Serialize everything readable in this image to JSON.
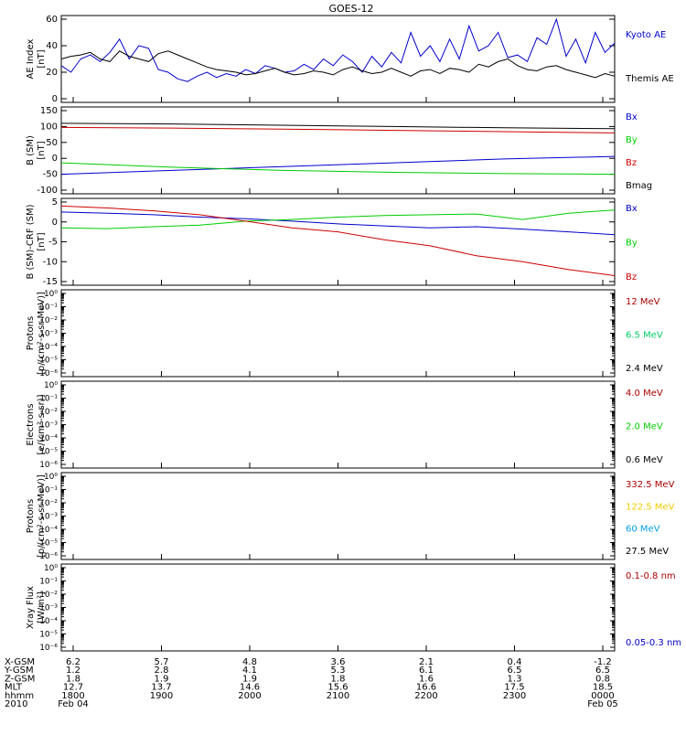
{
  "title": "GOES-12",
  "chart_data": [
    {
      "type": "line",
      "ylabel_lines": [
        "AE Index",
        "[nT]"
      ],
      "ylim": [
        0,
        60
      ],
      "yticks": [
        0,
        20,
        40,
        60
      ],
      "series": [
        {
          "name": "Kyoto AE",
          "color": "#0000cc",
          "values": [
            25,
            20,
            30,
            33,
            28,
            35,
            45,
            30,
            40,
            38,
            22,
            20,
            15,
            13,
            17,
            20,
            16,
            19,
            17,
            22,
            19,
            25,
            23,
            20,
            21,
            26,
            22,
            30,
            25,
            33,
            28,
            20,
            32,
            24,
            35,
            27,
            50,
            32,
            40,
            28,
            45,
            30,
            55,
            36,
            40,
            50,
            31,
            33,
            28,
            46,
            41,
            60,
            32,
            45,
            27,
            50,
            35,
            42
          ]
        },
        {
          "name": "Themis AE",
          "color": "#000000",
          "values": [
            30,
            32,
            33,
            35,
            30,
            28,
            36,
            32,
            30,
            28,
            34,
            36,
            33,
            30,
            27,
            24,
            22,
            21,
            20,
            18,
            19,
            21,
            23,
            20,
            18,
            19,
            21,
            20,
            18,
            22,
            24,
            21,
            19,
            20,
            23,
            20,
            17,
            21,
            22,
            19,
            23,
            22,
            20,
            26,
            24,
            28,
            30,
            25,
            22,
            21,
            24,
            25,
            22,
            20,
            18,
            16,
            19,
            17
          ]
        }
      ]
    },
    {
      "type": "line",
      "ylabel_lines": [
        "B (SM)",
        "[nT]"
      ],
      "ylim": [
        -100,
        150
      ],
      "yticks": [
        -100,
        -50,
        0,
        50,
        100,
        150
      ],
      "series": [
        {
          "name": "Bx",
          "color": "#0000cc",
          "values": [
            -50,
            -38,
            -26,
            -14,
            -2,
            6
          ]
        },
        {
          "name": "By",
          "color": "#00cc00",
          "values": [
            -14,
            -28,
            -38,
            -44,
            -48,
            -50
          ]
        },
        {
          "name": "Bz",
          "color": "#cc0000",
          "values": [
            97,
            95,
            92,
            88,
            84,
            80
          ]
        },
        {
          "name": "Bmag",
          "color": "#000000",
          "values": [
            110,
            108,
            104,
            100,
            96,
            93
          ]
        }
      ]
    },
    {
      "type": "line",
      "ylabel_lines": [
        "B (SM)-CRF (SM)",
        "[nT]"
      ],
      "ylim": [
        -15,
        5
      ],
      "yticks": [
        -15,
        -10,
        -5,
        0,
        5
      ],
      "series": [
        {
          "name": "Bx",
          "color": "#0000cc",
          "values": [
            2.5,
            2.2,
            1.8,
            1.2,
            0.8,
            0.2,
            -0.5,
            -1.0,
            -1.5,
            -1.2,
            -1.8,
            -2.5,
            -3.2
          ]
        },
        {
          "name": "By",
          "color": "#00cc00",
          "values": [
            -1.5,
            -1.7,
            -1.2,
            -0.8,
            0.2,
            0.6,
            1.2,
            1.6,
            1.8,
            2.0,
            0.6,
            2.2,
            3.0
          ]
        },
        {
          "name": "Bz",
          "color": "#cc0000",
          "values": [
            4.0,
            3.5,
            2.8,
            1.8,
            0.2,
            -1.5,
            -2.5,
            -4.5,
            -6.0,
            -8.5,
            -10.0,
            -12.0,
            -13.5
          ]
        }
      ]
    },
    {
      "type": "line",
      "ylabel_lines": [
        "Protons",
        "[p/(cm²-s-sr-MeV)]"
      ],
      "ylim": [
        1e-06,
        1
      ],
      "yscale": "log",
      "legend": [
        {
          "name": "12 MeV",
          "color": "#aa0000"
        },
        {
          "name": "6.5 MeV",
          "color": "#00cc66"
        },
        {
          "name": "2.4 MeV",
          "color": "#000000"
        }
      ]
    },
    {
      "type": "line",
      "ylabel_lines": [
        "Electrons",
        "[e/(cm²-s-sr)]"
      ],
      "ylim": [
        1e-06,
        1
      ],
      "yscale": "log",
      "legend": [
        {
          "name": "4.0 MeV",
          "color": "#aa0000"
        },
        {
          "name": "2.0 MeV",
          "color": "#00cc00"
        },
        {
          "name": "0.6 MeV",
          "color": "#000000"
        }
      ]
    },
    {
      "type": "line",
      "ylabel_lines": [
        "Protons",
        "[p/(cm²-s-sr-MeV)]"
      ],
      "ylim": [
        1e-06,
        1
      ],
      "yscale": "log",
      "legend": [
        {
          "name": "332.5 MeV",
          "color": "#aa0000"
        },
        {
          "name": "122.5 MeV",
          "color": "#eecc00"
        },
        {
          "name": "60 MeV",
          "color": "#00a0dd"
        },
        {
          "name": "27.5 MeV",
          "color": "#000000"
        }
      ]
    },
    {
      "type": "line",
      "ylabel_lines": [
        "Xray Flux",
        "[W/m²]"
      ],
      "ylim": [
        1e-06,
        1
      ],
      "yscale": "log",
      "legend": [
        {
          "name": "0.1-0.8 nm",
          "color": "#aa0000"
        },
        {
          "name": "0.05-0.3 nm",
          "color": "#0000cc"
        }
      ]
    }
  ],
  "log_tick_labels": [
    "10⁰",
    "10⁻¹",
    "10⁻²",
    "10⁻³",
    "10⁻⁴",
    "10⁻⁵",
    "10⁻⁶"
  ],
  "xaxis": {
    "row_labels": [
      "X-GSM",
      "Y-GSM",
      "Z-GSM",
      "MLT",
      "hhmm",
      "2010"
    ],
    "columns": [
      {
        "X-GSM": "6.2",
        "Y-GSM": "1.2",
        "Z-GSM": "1.8",
        "MLT": "12.7",
        "hhmm": "1800",
        "date": "Feb 04"
      },
      {
        "X-GSM": "5.7",
        "Y-GSM": "2.8",
        "Z-GSM": "1.9",
        "MLT": "13.7",
        "hhmm": "1900",
        "date": ""
      },
      {
        "X-GSM": "4.8",
        "Y-GSM": "4.1",
        "Z-GSM": "1.9",
        "MLT": "14.6",
        "hhmm": "2000",
        "date": ""
      },
      {
        "X-GSM": "3.6",
        "Y-GSM": "5.3",
        "Z-GSM": "1.8",
        "MLT": "15.6",
        "hhmm": "2100",
        "date": ""
      },
      {
        "X-GSM": "2.1",
        "Y-GSM": "6.1",
        "Z-GSM": "1.6",
        "MLT": "16.6",
        "hhmm": "2200",
        "date": ""
      },
      {
        "X-GSM": "0.4",
        "Y-GSM": "6.5",
        "Z-GSM": "1.3",
        "MLT": "17.5",
        "hhmm": "2300",
        "date": ""
      },
      {
        "X-GSM": "-1.2",
        "Y-GSM": "6.5",
        "Z-GSM": "0.8",
        "MLT": "18.5",
        "hhmm": "0000",
        "date": "Feb 05"
      }
    ]
  }
}
